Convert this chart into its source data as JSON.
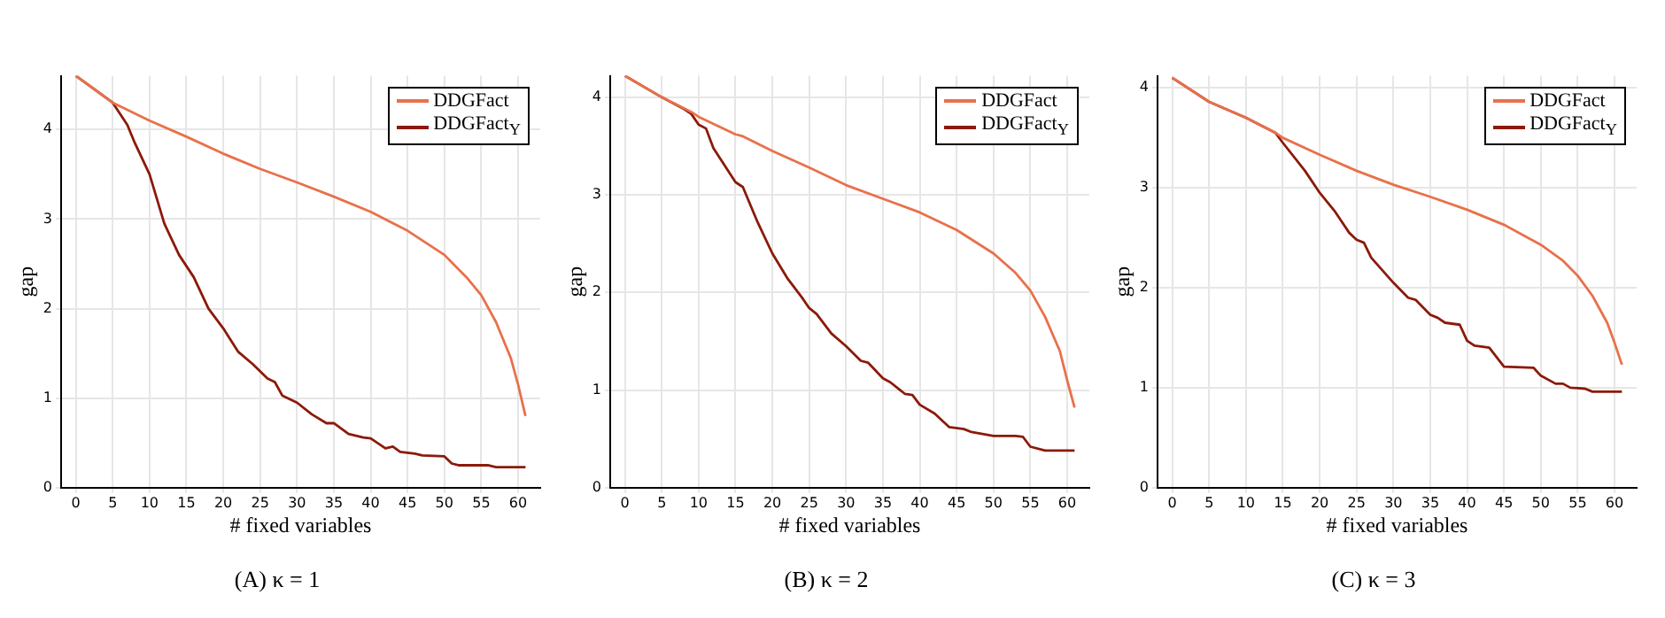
{
  "chart_data": [
    {
      "type": "line",
      "title": "(A) κ = 1",
      "xlabel": "# fixed variables",
      "ylabel": "gap",
      "xlim": [
        -2,
        63
      ],
      "ylim": [
        0,
        4.6
      ],
      "xticks": [
        0,
        5,
        10,
        15,
        20,
        25,
        30,
        35,
        40,
        45,
        50,
        55,
        60
      ],
      "yticks": [
        0,
        1,
        2,
        3,
        4
      ],
      "grid": true,
      "legend": "top right",
      "marker": "none",
      "line_style": "solid",
      "series": [
        {
          "name": "DDGFact",
          "color": "#e8714a",
          "x": [
            0,
            5,
            10,
            15,
            20,
            25,
            30,
            35,
            40,
            45,
            50,
            53,
            55,
            57,
            59,
            60,
            61
          ],
          "values": [
            4.6,
            4.3,
            4.1,
            3.92,
            3.73,
            3.56,
            3.41,
            3.25,
            3.08,
            2.87,
            2.6,
            2.35,
            2.15,
            1.85,
            1.45,
            1.15,
            0.8
          ]
        },
        {
          "name": "DDGFact$_{Υ}$",
          "color": "#8b1a0a",
          "x": [
            0,
            5,
            7,
            8,
            10,
            12,
            14,
            16,
            18,
            20,
            22,
            24,
            26,
            27,
            28,
            30,
            32,
            34,
            35,
            37,
            39,
            40,
            42,
            43,
            44,
            46,
            47,
            50,
            51,
            52,
            56,
            57,
            61
          ],
          "values": [
            4.6,
            4.3,
            4.05,
            3.85,
            3.5,
            2.95,
            2.6,
            2.35,
            2.0,
            1.78,
            1.52,
            1.38,
            1.22,
            1.18,
            1.03,
            0.95,
            0.82,
            0.72,
            0.72,
            0.6,
            0.56,
            0.55,
            0.44,
            0.46,
            0.4,
            0.38,
            0.36,
            0.35,
            0.27,
            0.25,
            0.25,
            0.23,
            0.23
          ]
        }
      ]
    },
    {
      "type": "line",
      "title": "(B) κ = 2",
      "xlabel": "# fixed variables",
      "ylabel": "gap",
      "xlim": [
        -2,
        63
      ],
      "ylim": [
        0,
        4.22
      ],
      "xticks": [
        0,
        5,
        10,
        15,
        20,
        25,
        30,
        35,
        40,
        45,
        50,
        55,
        60
      ],
      "yticks": [
        0,
        1,
        2,
        3,
        4
      ],
      "grid": true,
      "legend": "top right",
      "marker": "none",
      "line_style": "solid",
      "series": [
        {
          "name": "DDGFact",
          "color": "#e8714a",
          "x": [
            0,
            5,
            9,
            10,
            15,
            16,
            20,
            25,
            30,
            35,
            40,
            45,
            50,
            53,
            55,
            57,
            59,
            60,
            61
          ],
          "values": [
            4.22,
            4.0,
            3.85,
            3.8,
            3.62,
            3.6,
            3.45,
            3.28,
            3.1,
            2.96,
            2.82,
            2.64,
            2.4,
            2.2,
            2.02,
            1.75,
            1.4,
            1.1,
            0.82
          ]
        },
        {
          "name": "DDGFact$_{Υ}$",
          "color": "#8b1a0a",
          "x": [
            0,
            5,
            8,
            9,
            10,
            11,
            12,
            15,
            16,
            18,
            20,
            22,
            24,
            25,
            26,
            28,
            30,
            32,
            33,
            35,
            36,
            38,
            39,
            40,
            42,
            44,
            46,
            47,
            50,
            53,
            54,
            55,
            57,
            61
          ],
          "values": [
            4.22,
            4.0,
            3.88,
            3.83,
            3.72,
            3.68,
            3.48,
            3.13,
            3.08,
            2.72,
            2.4,
            2.15,
            1.95,
            1.84,
            1.78,
            1.58,
            1.45,
            1.3,
            1.28,
            1.12,
            1.08,
            0.96,
            0.95,
            0.85,
            0.76,
            0.62,
            0.6,
            0.57,
            0.53,
            0.53,
            0.52,
            0.42,
            0.38,
            0.38
          ]
        }
      ]
    },
    {
      "type": "line",
      "title": "(C) κ = 3",
      "xlabel": "# fixed variables",
      "ylabel": "gap",
      "xlim": [
        -2,
        63
      ],
      "ylim": [
        0,
        4.12
      ],
      "xticks": [
        0,
        5,
        10,
        15,
        20,
        25,
        30,
        35,
        40,
        45,
        50,
        55,
        60
      ],
      "yticks": [
        0,
        1,
        2,
        3,
        4
      ],
      "grid": true,
      "legend": "top right",
      "marker": "none",
      "line_style": "solid",
      "series": [
        {
          "name": "DDGFact",
          "color": "#e8714a",
          "x": [
            0,
            5,
            10,
            14,
            15,
            20,
            25,
            30,
            35,
            40,
            45,
            50,
            53,
            55,
            57,
            59,
            60,
            61
          ],
          "values": [
            4.1,
            3.86,
            3.7,
            3.55,
            3.5,
            3.33,
            3.17,
            3.03,
            2.91,
            2.78,
            2.63,
            2.43,
            2.27,
            2.12,
            1.92,
            1.65,
            1.45,
            1.23
          ]
        },
        {
          "name": "DDGFact$_{Υ}$",
          "color": "#8b1a0a",
          "x": [
            0,
            5,
            10,
            14,
            15,
            18,
            20,
            22,
            24,
            25,
            26,
            27,
            30,
            32,
            33,
            35,
            36,
            37,
            39,
            40,
            41,
            43,
            45,
            49,
            50,
            52,
            53,
            54,
            56,
            57,
            61
          ],
          "values": [
            4.1,
            3.86,
            3.7,
            3.55,
            3.45,
            3.17,
            2.95,
            2.77,
            2.55,
            2.48,
            2.45,
            2.3,
            2.05,
            1.9,
            1.88,
            1.73,
            1.7,
            1.65,
            1.63,
            1.47,
            1.42,
            1.4,
            1.21,
            1.2,
            1.12,
            1.04,
            1.04,
            1.0,
            0.99,
            0.96,
            0.96
          ]
        }
      ]
    }
  ]
}
